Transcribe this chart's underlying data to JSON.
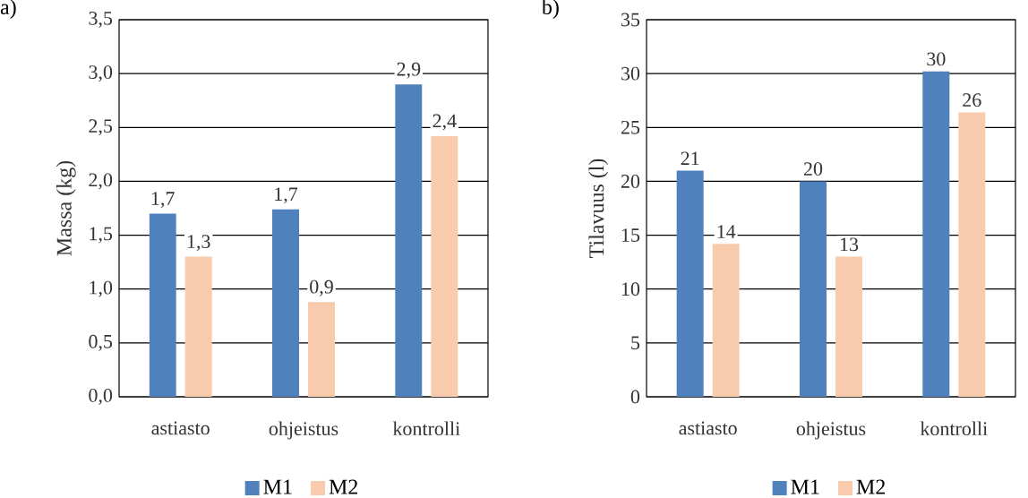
{
  "chart_data": [
    {
      "type": "bar",
      "title": "a)",
      "ylabel": "Massa (kg)",
      "categories": [
        "astiasto",
        "ohjeistus",
        "kontrolli"
      ],
      "series": [
        {
          "name": "M1",
          "color": "#4f81bd",
          "values": [
            1.7,
            1.74,
            2.9
          ],
          "value_labels": [
            "1,7",
            "1,7",
            "2,9"
          ]
        },
        {
          "name": "M2",
          "color": "#f8cbad",
          "values": [
            1.3,
            0.88,
            2.42
          ],
          "value_labels": [
            "1,3",
            "0,9",
            "2,4"
          ]
        }
      ],
      "ylim": [
        0,
        3.5
      ],
      "yticks": [
        {
          "value": 0,
          "label": "0,0"
        },
        {
          "value": 0.5,
          "label": "0,5"
        },
        {
          "value": 1,
          "label": "1,0"
        },
        {
          "value": 1.5,
          "label": "1,5"
        },
        {
          "value": 2,
          "label": "2,0"
        },
        {
          "value": 2.5,
          "label": "2,5"
        },
        {
          "value": 3,
          "label": "3,0"
        },
        {
          "value": 3.5,
          "label": "3,5"
        }
      ],
      "grid": "y",
      "legend": "bottom"
    },
    {
      "type": "bar",
      "title": "b)",
      "ylabel": "Tilavuus (l)",
      "categories": [
        "astiasto",
        "ohjeistus",
        "kontrolli"
      ],
      "series": [
        {
          "name": "M1",
          "color": "#4f81bd",
          "values": [
            21.0,
            20.0,
            30.2
          ],
          "value_labels": [
            "21",
            "20",
            "30"
          ]
        },
        {
          "name": "M2",
          "color": "#f8cbad",
          "values": [
            14.2,
            13.0,
            26.4
          ],
          "value_labels": [
            "14",
            "13",
            "26"
          ]
        }
      ],
      "ylim": [
        0,
        35
      ],
      "yticks": [
        0,
        5,
        10,
        15,
        20,
        25,
        30,
        35
      ],
      "grid": "y",
      "legend": "bottom"
    }
  ]
}
